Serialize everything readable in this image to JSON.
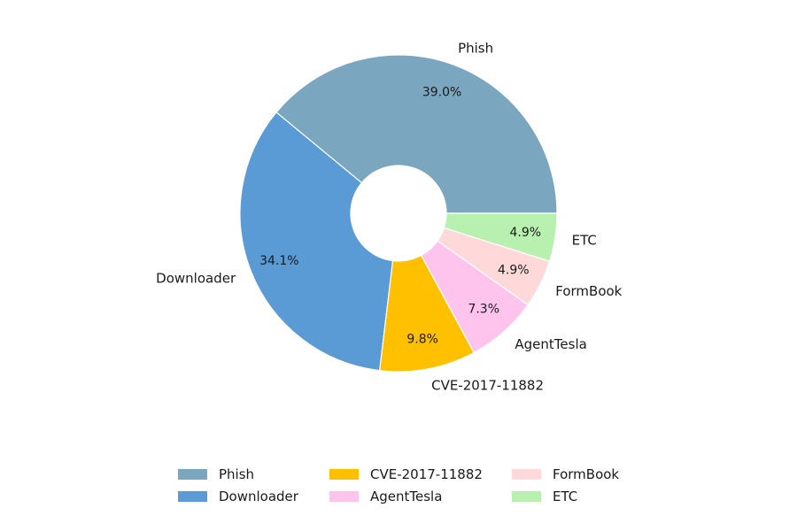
{
  "chart_data": {
    "type": "pie",
    "title": "",
    "categories": [
      "Phish",
      "Downloader",
      "CVE-2017-11882",
      "AgentTesla",
      "FormBook",
      "ETC"
    ],
    "values": [
      39.0,
      34.1,
      9.8,
      7.3,
      4.9,
      4.9
    ],
    "value_labels": [
      "39.0%",
      "34.1%",
      "9.8%",
      "7.3%",
      "4.9%",
      "4.9%"
    ],
    "colors": [
      "#7ba6bf",
      "#5b9bd5",
      "#ffc000",
      "#ffc4ee",
      "#ffd9d9",
      "#b8f0b0"
    ],
    "donut": true,
    "start_angle_deg": 0,
    "direction": "counterclockwise",
    "legend": {
      "placement": "bottom",
      "columns": 3,
      "entries": [
        "Phish",
        "Downloader",
        "CVE-2017-11882",
        "AgentTesla",
        "FormBook",
        "ETC"
      ]
    }
  }
}
